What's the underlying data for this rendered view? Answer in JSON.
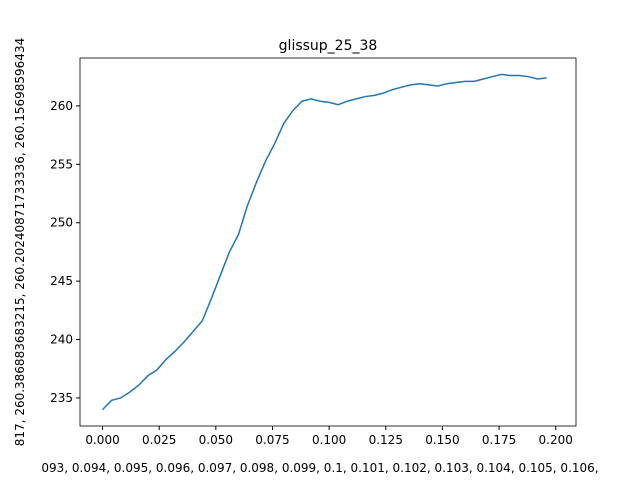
{
  "chart_data": {
    "type": "line",
    "title": "glissup_25_38",
    "xlabel": "093, 0.094, 0.095, 0.096, 0.097, 0.098, 0.099, 0.1, 0.101, 0.102, 0.103, 0.104, 0.105, 0.106,",
    "ylabel": "817, 260.386883683215, 260.20240871733336, 260.15698596434",
    "x": [
      0,
      0.004,
      0.008,
      0.012,
      0.016,
      0.02,
      0.024,
      0.028,
      0.032,
      0.036,
      0.04,
      0.044,
      0.048,
      0.052,
      0.056,
      0.06,
      0.064,
      0.068,
      0.072,
      0.076,
      0.08,
      0.084,
      0.088,
      0.092,
      0.096,
      0.1,
      0.104,
      0.108,
      0.112,
      0.116,
      0.12,
      0.124,
      0.128,
      0.132,
      0.136,
      0.14,
      0.144,
      0.148,
      0.152,
      0.156,
      0.16,
      0.164,
      0.168,
      0.172,
      0.176,
      0.18,
      0.184,
      0.188,
      0.192,
      0.196
    ],
    "series": [
      {
        "color": "#1f77b4",
        "values": [
          234.0,
          234.8,
          235.0,
          235.5,
          236.1,
          236.9,
          237.4,
          238.3,
          239.0,
          239.8,
          240.7,
          241.6,
          243.5,
          245.5,
          247.5,
          249.0,
          251.5,
          253.5,
          255.3,
          256.8,
          258.5,
          259.6,
          260.4,
          260.6,
          260.4,
          260.3,
          260.1,
          260.4,
          260.6,
          260.8,
          260.9,
          261.1,
          261.4,
          261.6,
          261.8,
          261.9,
          261.8,
          261.7,
          261.9,
          262.0,
          262.1,
          262.1,
          262.3,
          262.5,
          262.7,
          262.6,
          262.6,
          262.5,
          262.3,
          262.4
        ]
      }
    ],
    "xlim": [
      -0.00995,
      0.20895
    ],
    "ylim": [
      232.6,
      264.1
    ],
    "xticks": [
      {
        "value": 0,
        "label": "0.000"
      },
      0.025,
      {
        "value": 0.05,
        "label": "0.050"
      },
      0.075,
      {
        "value": 0.1,
        "label": "0.100"
      },
      0.125,
      {
        "value": 0.15,
        "label": "0.150"
      },
      0.175,
      {
        "value": 0.2,
        "label": "0.200"
      }
    ],
    "yticks": [
      235,
      240,
      245,
      250,
      255,
      260
    ]
  }
}
